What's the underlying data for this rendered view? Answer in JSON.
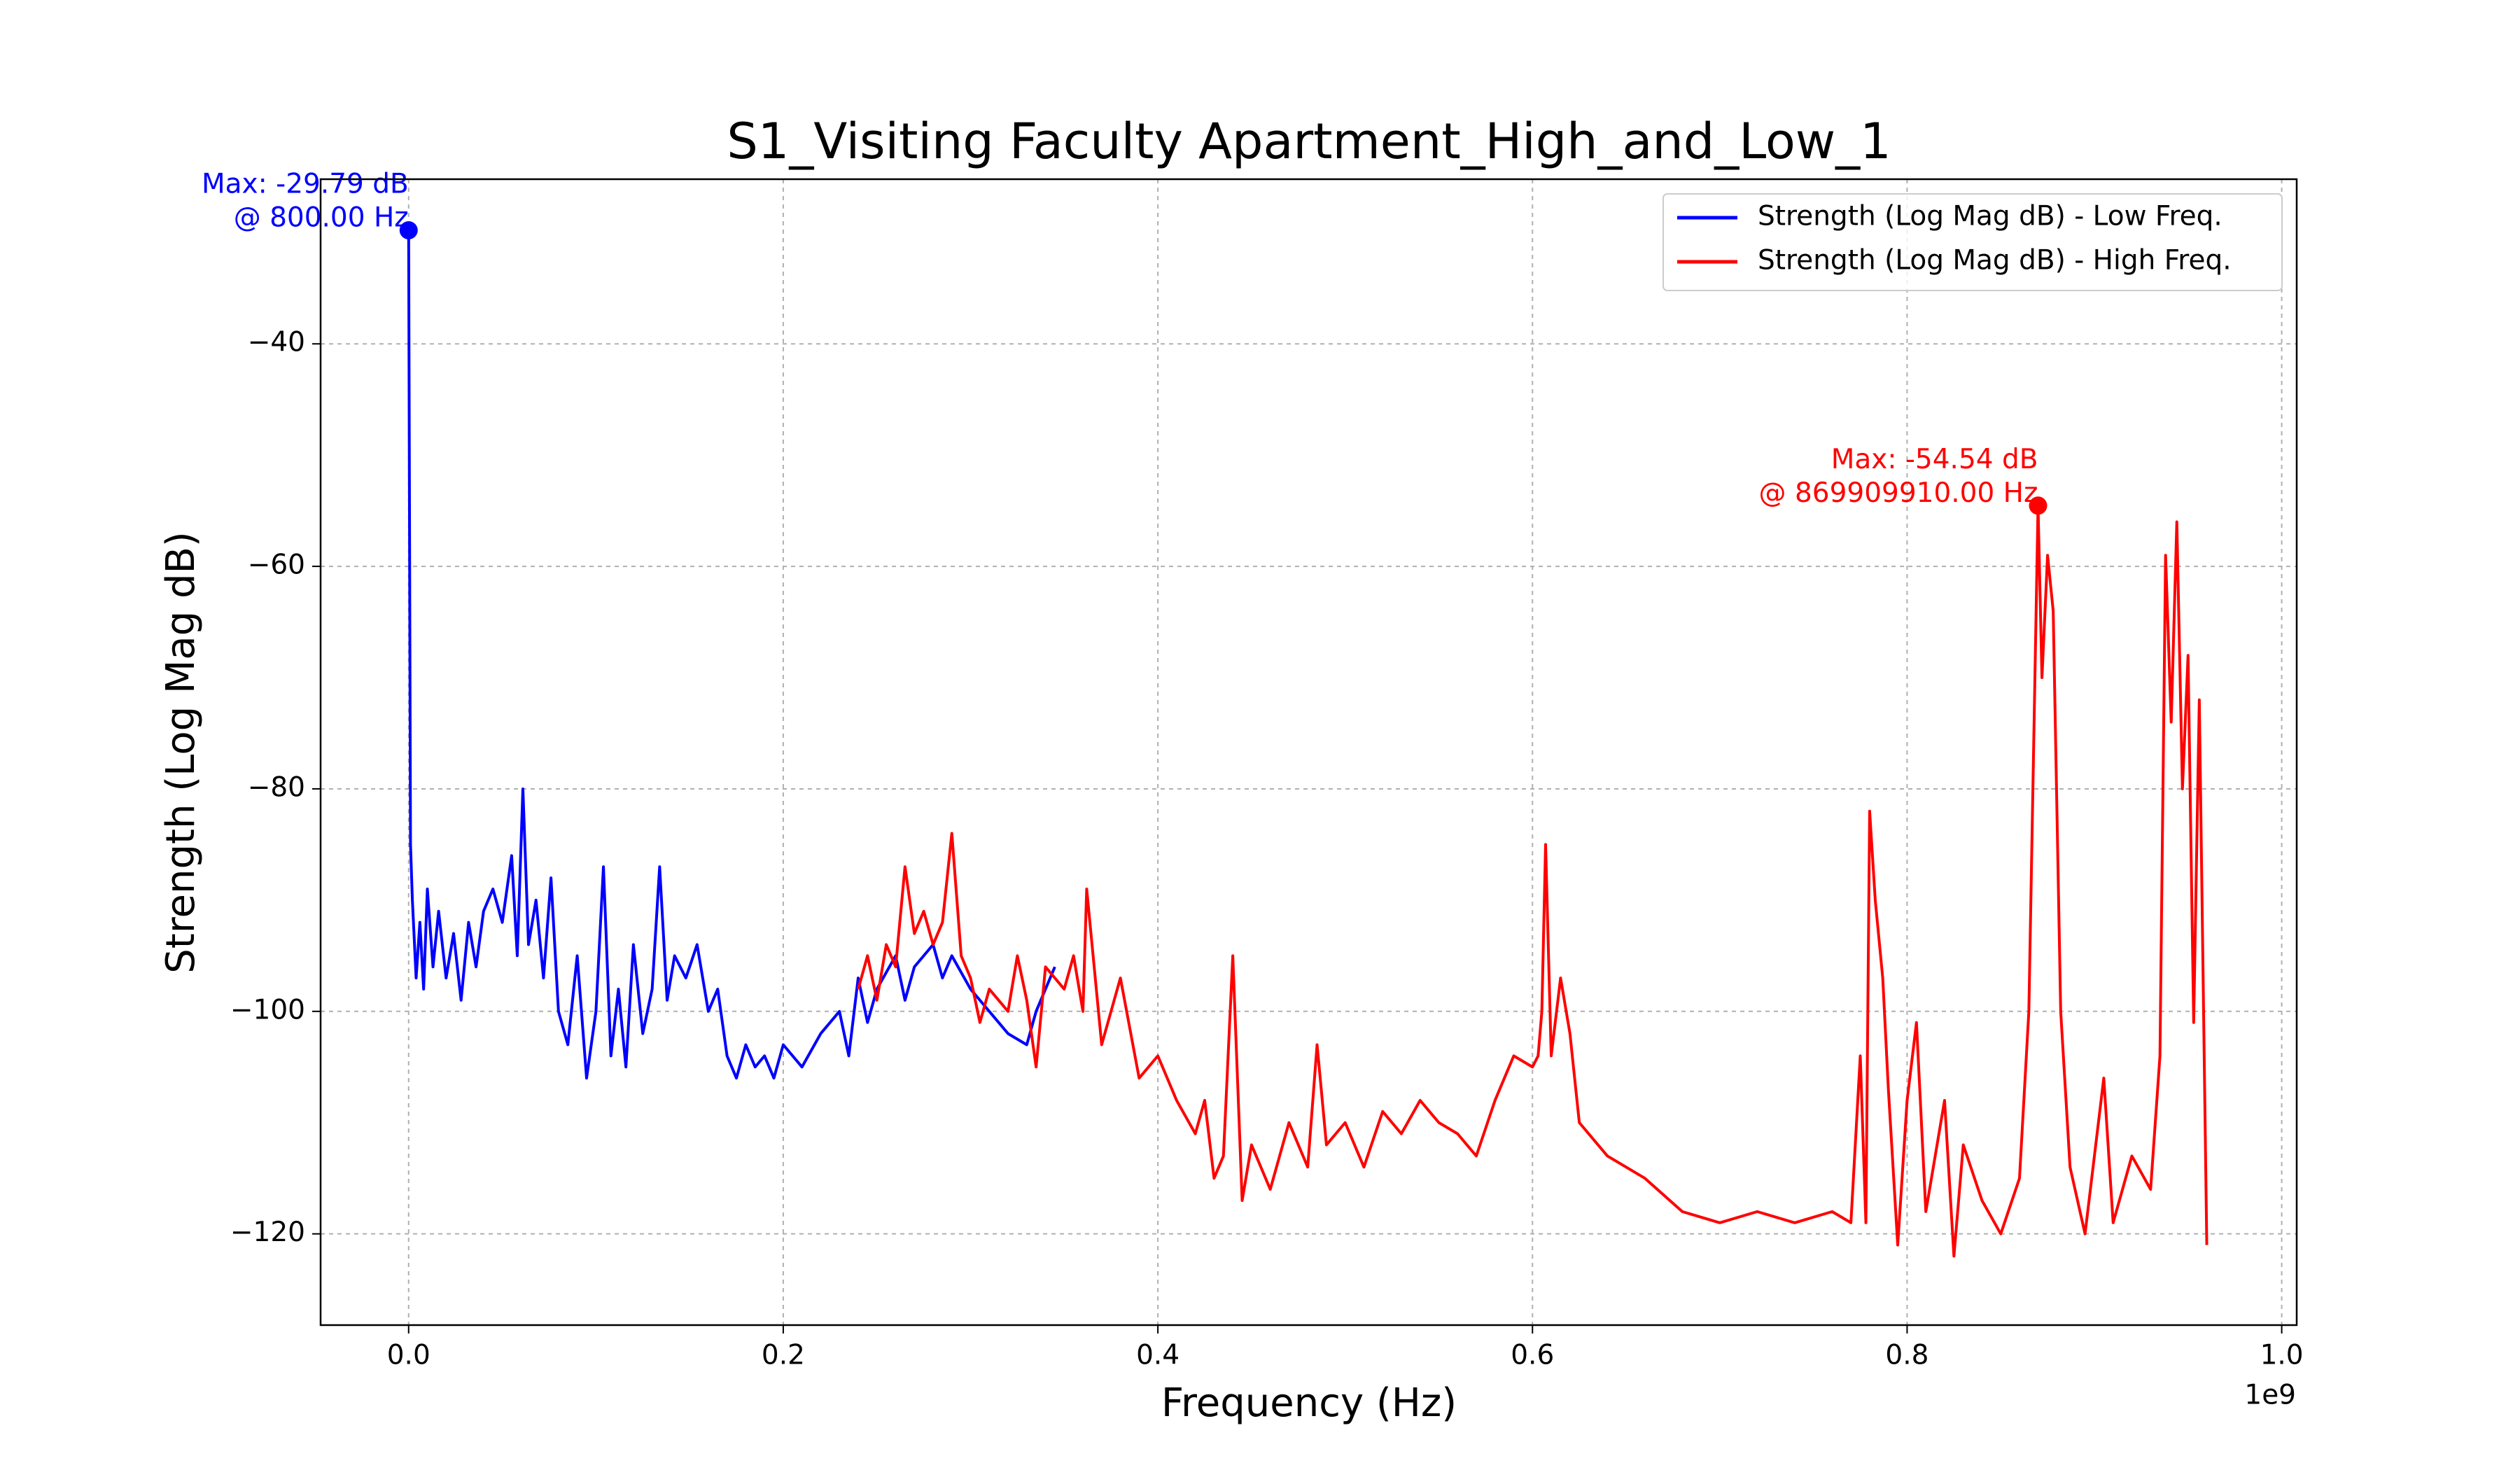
{
  "chart_data": {
    "type": "line",
    "title": "S1_Visiting Faculty Apartment_High_and_Low_1",
    "x_label": "Frequency (Hz)",
    "y_label": "Strength (Log Mag dB)",
    "x_offset_label": "1e9",
    "xlim": [
      -47000000,
      1008000000
    ],
    "ylim": [
      -128.2,
      -25.2
    ],
    "xticks": [
      {
        "value": 0,
        "label": "0.0"
      },
      {
        "value": 200000000,
        "label": "0.2"
      },
      {
        "value": 400000000,
        "label": "0.4"
      },
      {
        "value": 600000000,
        "label": "0.6"
      },
      {
        "value": 800000000,
        "label": "0.8"
      },
      {
        "value": 1000000000,
        "label": "1.0"
      }
    ],
    "yticks": [
      {
        "value": -120,
        "label": "−120"
      },
      {
        "value": -100,
        "label": "−100"
      },
      {
        "value": -80,
        "label": "−80"
      },
      {
        "value": -60,
        "label": "−60"
      },
      {
        "value": -40,
        "label": "−40"
      }
    ],
    "grid": true,
    "legend_position": "upper right",
    "series": [
      {
        "name": "Strength (Log Mag dB) - Low Freq.",
        "color": "#0000ff",
        "x": [
          800,
          1000000,
          2000000,
          4000000,
          6000000,
          8000000,
          10000000,
          13000000,
          16000000,
          20000000,
          24000000,
          28000000,
          32000000,
          36000000,
          40000000,
          45000000,
          50000000,
          55000000,
          58000000,
          61000000,
          64000000,
          68000000,
          72000000,
          76000000,
          80000000,
          85000000,
          90000000,
          95000000,
          100000000,
          104000000,
          108000000,
          112000000,
          116000000,
          120000000,
          125000000,
          130000000,
          134000000,
          138000000,
          142000000,
          148000000,
          154000000,
          160000000,
          165000000,
          170000000,
          175000000,
          180000000,
          185000000,
          190000000,
          195000000,
          200000000,
          210000000,
          220000000,
          230000000,
          235000000,
          240000000,
          245000000,
          250000000,
          260000000,
          265000000,
          270000000,
          280000000,
          285000000,
          290000000,
          300000000,
          310000000,
          320000000,
          330000000,
          335000000,
          345000000
        ],
        "values": [
          -29.79,
          -85,
          -90,
          -97,
          -92,
          -98,
          -89,
          -96,
          -91,
          -97,
          -93,
          -99,
          -92,
          -96,
          -91,
          -89,
          -92,
          -86,
          -95,
          -80,
          -94,
          -90,
          -97,
          -88,
          -100,
          -103,
          -95,
          -106,
          -100,
          -87,
          -104,
          -98,
          -105,
          -94,
          -102,
          -98,
          -87,
          -99,
          -95,
          -97,
          -94,
          -100,
          -98,
          -104,
          -106,
          -103,
          -105,
          -104,
          -106,
          -103,
          -105,
          -102,
          -100,
          -104,
          -97,
          -101,
          -98,
          -95,
          -99,
          -96,
          -94,
          -97,
          -95,
          -98,
          -100,
          -102,
          -103,
          -100,
          -96
        ]
      },
      {
        "name": "Strength (Log Mag dB) - High Freq.",
        "color": "#ff0000",
        "x": [
          240000000,
          245000000,
          250000000,
          255000000,
          260000000,
          265000000,
          270000000,
          275000000,
          280000000,
          285000000,
          290000000,
          295000000,
          300000000,
          305000000,
          310000000,
          320000000,
          325000000,
          330000000,
          335000000,
          340000000,
          350000000,
          355000000,
          360000000,
          362000000,
          370000000,
          380000000,
          390000000,
          400000000,
          410000000,
          420000000,
          425000000,
          430000000,
          435000000,
          440000000,
          445000000,
          450000000,
          460000000,
          470000000,
          480000000,
          485000000,
          490000000,
          500000000,
          510000000,
          520000000,
          530000000,
          540000000,
          550000000,
          560000000,
          570000000,
          580000000,
          590000000,
          600000000,
          603000000,
          605000000,
          607000000,
          610000000,
          615000000,
          620000000,
          625000000,
          640000000,
          660000000,
          680000000,
          700000000,
          720000000,
          740000000,
          760000000,
          770000000,
          775000000,
          778000000,
          780000000,
          783000000,
          787000000,
          790000000,
          795000000,
          800000000,
          805000000,
          810000000,
          820000000,
          825000000,
          830000000,
          840000000,
          850000000,
          860000000,
          865000000,
          869909910,
          872000000,
          875000000,
          878000000,
          882000000,
          887000000,
          895000000,
          905000000,
          910000000,
          920000000,
          930000000,
          935000000,
          938000000,
          941000000,
          944000000,
          947000000,
          950000000,
          953000000,
          956000000,
          960000000
        ],
        "values": [
          -98,
          -95,
          -99,
          -94,
          -96,
          -87,
          -93,
          -91,
          -94,
          -92,
          -84,
          -95,
          -97,
          -101,
          -98,
          -100,
          -95,
          -99,
          -105,
          -96,
          -98,
          -95,
          -100,
          -89,
          -103,
          -97,
          -106,
          -104,
          -108,
          -111,
          -108,
          -115,
          -113,
          -95,
          -117,
          -112,
          -116,
          -110,
          -114,
          -103,
          -112,
          -110,
          -114,
          -109,
          -111,
          -108,
          -110,
          -111,
          -113,
          -108,
          -104,
          -105,
          -104,
          -100,
          -85,
          -104,
          -97,
          -102,
          -110,
          -113,
          -115,
          -118,
          -119,
          -118,
          -119,
          -118,
          -119,
          -104,
          -119,
          -82,
          -90,
          -97,
          -107,
          -121,
          -108,
          -101,
          -118,
          -108,
          -122,
          -112,
          -117,
          -120,
          -115,
          -100,
          -54.54,
          -70,
          -59,
          -64,
          -100,
          -114,
          -120,
          -106,
          -119,
          -113,
          -116,
          -104,
          -59,
          -74,
          -56,
          -80,
          -68,
          -101,
          -72,
          -121
        ]
      }
    ],
    "annotations": [
      {
        "text": [
          "Max: -29.79 dB",
          "@ 800.00 Hz"
        ],
        "x": 800,
        "y": -29.79,
        "color": "#0000ff"
      },
      {
        "text": [
          "Max: -54.54 dB",
          "@ 869909910.00 Hz"
        ],
        "x": 869909910,
        "y": -54.54,
        "color": "#ff0000"
      }
    ]
  }
}
